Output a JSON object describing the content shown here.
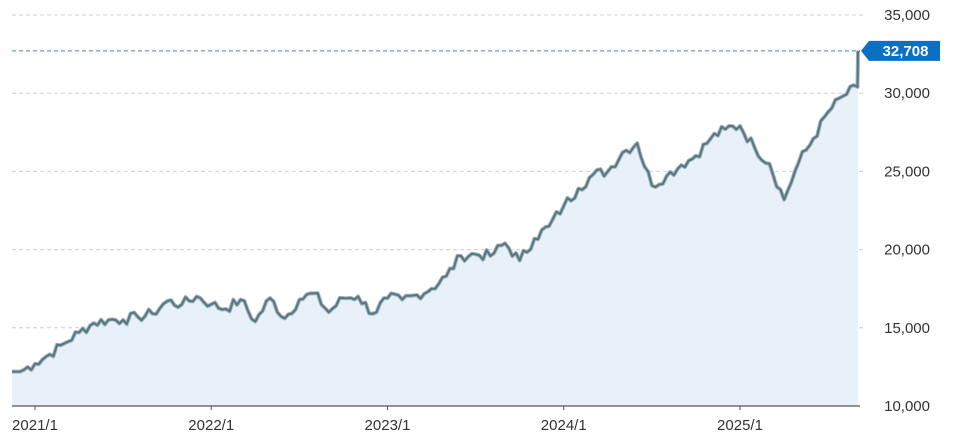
{
  "colors": {
    "line": "#5a7580",
    "line_outline": "#9fb6bd",
    "area_fill": "#e8f1fa",
    "grid": "#cfcfcf",
    "callout_bg": "#0b6fc4",
    "reference_line": "#3a86c8",
    "axis": "#555555"
  },
  "chart_data": {
    "type": "area",
    "y_axis_position": "right",
    "grid": "horizontal dashed",
    "ylim": [
      10000,
      35000
    ],
    "yticks": [
      {
        "value": 10000,
        "label": "10,000"
      },
      {
        "value": 15000,
        "label": "15,000"
      },
      {
        "value": 20000,
        "label": "20,000"
      },
      {
        "value": 25000,
        "label": "25,000"
      },
      {
        "value": 30000,
        "label": "30,000"
      },
      {
        "value": 35000,
        "label": "35,000"
      }
    ],
    "xlim": [
      "2021-01",
      "2025-10"
    ],
    "xticks": [
      {
        "value": "2021-01",
        "label": "2021/1"
      },
      {
        "value": "2022-01",
        "label": "2022/1"
      },
      {
        "value": "2023-01",
        "label": "2023/1"
      },
      {
        "value": "2024-01",
        "label": "2024/1"
      },
      {
        "value": "2025-01",
        "label": "2025/1"
      }
    ],
    "last_value": 32708,
    "last_value_label": "32,708",
    "series": [
      {
        "x": [
          "2020-12",
          "2021-01",
          "2021-02",
          "2021-03",
          "2021-04",
          "2021-05",
          "2021-06",
          "2021-07",
          "2021-08",
          "2021-09",
          "2021-10",
          "2021-11",
          "2021-12",
          "2022-01",
          "2022-02",
          "2022-03",
          "2022-04",
          "2022-05",
          "2022-06",
          "2022-07",
          "2022-08",
          "2022-09",
          "2022-10",
          "2022-11",
          "2022-12",
          "2023-01",
          "2023-02",
          "2023-03",
          "2023-04",
          "2023-05",
          "2023-06",
          "2023-07",
          "2023-08",
          "2023-09",
          "2023-10",
          "2023-11",
          "2023-12",
          "2024-01",
          "2024-02",
          "2024-03",
          "2024-04",
          "2024-05",
          "2024-06",
          "2024-07",
          "2024-08",
          "2024-09",
          "2024-10",
          "2024-11",
          "2024-12",
          "2025-01",
          "2025-02",
          "2025-03",
          "2025-04",
          "2025-05",
          "2025-06",
          "2025-07",
          "2025-08",
          "2025-09",
          "2025-10"
        ],
        "y": [
          12200,
          12700,
          13300,
          14000,
          14700,
          15300,
          15500,
          15500,
          15700,
          15900,
          16700,
          16500,
          17000,
          16500,
          16200,
          16800,
          15400,
          16900,
          15600,
          16800,
          17200,
          16000,
          16900,
          17000,
          15900,
          16900,
          16800,
          17100,
          17500,
          18300,
          19600,
          19700,
          19600,
          20400,
          19300,
          20700,
          21500,
          22800,
          23900,
          24800,
          25000,
          26200,
          26800,
          24100,
          24700,
          25400,
          26000,
          27100,
          27700,
          27900,
          26500,
          25500,
          23200,
          25600,
          27100,
          28800,
          29800,
          30400,
          32708
        ]
      }
    ]
  }
}
